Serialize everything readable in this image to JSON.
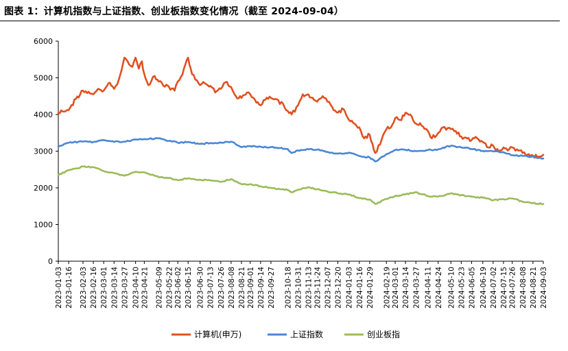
{
  "title": "图表 1：计算机指数与上证指数、创业板指数变化情况（截至 2024-09-04）",
  "chart_data": {
    "type": "line",
    "ylim": [
      0,
      6000
    ],
    "yticks": [
      0,
      1000,
      2000,
      3000,
      4000,
      5000,
      6000
    ],
    "xlim": [
      "2023-01-03",
      "2024-09-03"
    ],
    "xticks": [
      "2023-01-03",
      "2023-01-16",
      "2023-02-03",
      "2023-02-16",
      "2023-03-01",
      "2023-03-14",
      "2023-03-27",
      "2023-04-10",
      "2023-04-21",
      "2023-05-09",
      "2023-05-22",
      "2023-06-02",
      "2023-06-15",
      "2023-06-30",
      "2023-07-13",
      "2023-07-26",
      "2023-08-08",
      "2023-08-21",
      "2023-09-01",
      "2023-09-14",
      "2023-09-27",
      "2023-10-18",
      "2023-10-31",
      "2023-11-13",
      "2023-11-24",
      "2023-12-07",
      "2023-12-20",
      "2024-01-03",
      "2024-01-16",
      "2024-01-29",
      "2024-02-19",
      "2024-03-01",
      "2024-03-14",
      "2024-03-27",
      "2024-04-11",
      "2024-04-24",
      "2024-05-10",
      "2024-05-23",
      "2024-06-05",
      "2024-06-19",
      "2024-07-02",
      "2024-07-15",
      "2024-07-26",
      "2024-08-08",
      "2024-08-21",
      "2024-09-03"
    ],
    "grid": false,
    "legend_position": "bottom",
    "series": [
      {
        "name": "计算机(申万)",
        "color": "#E0501E",
        "points": [
          [
            "2023-01-03",
            4050
          ],
          [
            "2023-01-10",
            4080
          ],
          [
            "2023-01-16",
            4120
          ],
          [
            "2023-01-25",
            4420
          ],
          [
            "2023-02-03",
            4650
          ],
          [
            "2023-02-10",
            4620
          ],
          [
            "2023-02-16",
            4550
          ],
          [
            "2023-02-22",
            4700
          ],
          [
            "2023-03-01",
            4650
          ],
          [
            "2023-03-07",
            4850
          ],
          [
            "2023-03-14",
            4700
          ],
          [
            "2023-03-20",
            4950
          ],
          [
            "2023-03-27",
            5550
          ],
          [
            "2023-03-31",
            5450
          ],
          [
            "2023-04-06",
            5300
          ],
          [
            "2023-04-10",
            5550
          ],
          [
            "2023-04-14",
            5250
          ],
          [
            "2023-04-18",
            5450
          ],
          [
            "2023-04-21",
            5100
          ],
          [
            "2023-04-26",
            4800
          ],
          [
            "2023-05-04",
            5050
          ],
          [
            "2023-05-09",
            4900
          ],
          [
            "2023-05-15",
            4780
          ],
          [
            "2023-05-22",
            4750
          ],
          [
            "2023-05-29",
            4650
          ],
          [
            "2023-06-02",
            4900
          ],
          [
            "2023-06-08",
            5100
          ],
          [
            "2023-06-15",
            5550
          ],
          [
            "2023-06-20",
            5100
          ],
          [
            "2023-06-30",
            4800
          ],
          [
            "2023-07-06",
            4850
          ],
          [
            "2023-07-13",
            4780
          ],
          [
            "2023-07-19",
            4600
          ],
          [
            "2023-07-26",
            4700
          ],
          [
            "2023-08-01",
            4880
          ],
          [
            "2023-08-08",
            4750
          ],
          [
            "2023-08-14",
            4500
          ],
          [
            "2023-08-21",
            4450
          ],
          [
            "2023-08-28",
            4600
          ],
          [
            "2023-09-01",
            4550
          ],
          [
            "2023-09-07",
            4400
          ],
          [
            "2023-09-14",
            4250
          ],
          [
            "2023-09-20",
            4400
          ],
          [
            "2023-09-27",
            4450
          ],
          [
            "2023-10-12",
            4300
          ],
          [
            "2023-10-18",
            4100
          ],
          [
            "2023-10-23",
            4000
          ],
          [
            "2023-10-31",
            4250
          ],
          [
            "2023-11-06",
            4550
          ],
          [
            "2023-11-13",
            4550
          ],
          [
            "2023-11-20",
            4400
          ],
          [
            "2023-11-24",
            4350
          ],
          [
            "2023-12-01",
            4500
          ],
          [
            "2023-12-07",
            4350
          ],
          [
            "2023-12-13",
            4200
          ],
          [
            "2023-12-20",
            4050
          ],
          [
            "2023-12-27",
            4150
          ],
          [
            "2024-01-03",
            3850
          ],
          [
            "2024-01-10",
            3750
          ],
          [
            "2024-01-16",
            3650
          ],
          [
            "2024-01-22",
            3350
          ],
          [
            "2024-01-29",
            3450
          ],
          [
            "2024-02-05",
            2950
          ],
          [
            "2024-02-19",
            3600
          ],
          [
            "2024-02-26",
            3700
          ],
          [
            "2024-03-01",
            3900
          ],
          [
            "2024-03-07",
            3850
          ],
          [
            "2024-03-14",
            4050
          ],
          [
            "2024-03-20",
            4000
          ],
          [
            "2024-03-27",
            3750
          ],
          [
            "2024-04-03",
            3700
          ],
          [
            "2024-04-11",
            3550
          ],
          [
            "2024-04-16",
            3350
          ],
          [
            "2024-04-24",
            3500
          ],
          [
            "2024-04-30",
            3650
          ],
          [
            "2024-05-10",
            3600
          ],
          [
            "2024-05-16",
            3550
          ],
          [
            "2024-05-23",
            3400
          ],
          [
            "2024-05-30",
            3350
          ],
          [
            "2024-06-05",
            3300
          ],
          [
            "2024-06-12",
            3350
          ],
          [
            "2024-06-19",
            3250
          ],
          [
            "2024-06-26",
            3100
          ],
          [
            "2024-07-02",
            3150
          ],
          [
            "2024-07-09",
            3000
          ],
          [
            "2024-07-15",
            3100
          ],
          [
            "2024-07-22",
            3050
          ],
          [
            "2024-07-26",
            3100
          ],
          [
            "2024-08-01",
            3050
          ],
          [
            "2024-08-08",
            2950
          ],
          [
            "2024-08-14",
            2900
          ],
          [
            "2024-08-21",
            2880
          ],
          [
            "2024-08-28",
            2850
          ],
          [
            "2024-09-03",
            2900
          ]
        ]
      },
      {
        "name": "上证指数",
        "color": "#4A86D4",
        "points": [
          [
            "2023-01-03",
            3120
          ],
          [
            "2023-01-16",
            3230
          ],
          [
            "2023-02-03",
            3260
          ],
          [
            "2023-02-16",
            3250
          ],
          [
            "2023-03-01",
            3300
          ],
          [
            "2023-03-14",
            3250
          ],
          [
            "2023-03-27",
            3260
          ],
          [
            "2023-04-10",
            3320
          ],
          [
            "2023-04-21",
            3330
          ],
          [
            "2023-05-09",
            3350
          ],
          [
            "2023-05-22",
            3280
          ],
          [
            "2023-06-02",
            3230
          ],
          [
            "2023-06-15",
            3250
          ],
          [
            "2023-06-30",
            3200
          ],
          [
            "2023-07-13",
            3220
          ],
          [
            "2023-07-26",
            3230
          ],
          [
            "2023-08-08",
            3260
          ],
          [
            "2023-08-21",
            3110
          ],
          [
            "2023-09-01",
            3140
          ],
          [
            "2023-09-14",
            3120
          ],
          [
            "2023-09-27",
            3110
          ],
          [
            "2023-10-18",
            3060
          ],
          [
            "2023-10-23",
            2950
          ],
          [
            "2023-10-31",
            3020
          ],
          [
            "2023-11-13",
            3050
          ],
          [
            "2023-11-24",
            3040
          ],
          [
            "2023-12-07",
            2980
          ],
          [
            "2023-12-20",
            2930
          ],
          [
            "2024-01-03",
            2960
          ],
          [
            "2024-01-16",
            2870
          ],
          [
            "2024-01-29",
            2830
          ],
          [
            "2024-02-05",
            2720
          ],
          [
            "2024-02-19",
            2920
          ],
          [
            "2024-03-01",
            3030
          ],
          [
            "2024-03-14",
            3040
          ],
          [
            "2024-03-27",
            3000
          ],
          [
            "2024-04-11",
            3030
          ],
          [
            "2024-04-24",
            3050
          ],
          [
            "2024-05-10",
            3150
          ],
          [
            "2024-05-23",
            3100
          ],
          [
            "2024-06-05",
            3060
          ],
          [
            "2024-06-19",
            3010
          ],
          [
            "2024-07-02",
            2990
          ],
          [
            "2024-07-15",
            2970
          ],
          [
            "2024-07-26",
            2890
          ],
          [
            "2024-08-08",
            2870
          ],
          [
            "2024-08-21",
            2850
          ],
          [
            "2024-09-03",
            2800
          ]
        ]
      },
      {
        "name": "创业板指",
        "color": "#9BBB59",
        "points": [
          [
            "2023-01-03",
            2350
          ],
          [
            "2023-01-16",
            2480
          ],
          [
            "2023-02-03",
            2580
          ],
          [
            "2023-02-16",
            2560
          ],
          [
            "2023-03-01",
            2460
          ],
          [
            "2023-03-14",
            2400
          ],
          [
            "2023-03-27",
            2330
          ],
          [
            "2023-04-10",
            2440
          ],
          [
            "2023-04-21",
            2420
          ],
          [
            "2023-05-09",
            2290
          ],
          [
            "2023-05-22",
            2270
          ],
          [
            "2023-06-02",
            2210
          ],
          [
            "2023-06-15",
            2260
          ],
          [
            "2023-06-30",
            2220
          ],
          [
            "2023-07-13",
            2200
          ],
          [
            "2023-07-26",
            2160
          ],
          [
            "2023-08-08",
            2240
          ],
          [
            "2023-08-21",
            2100
          ],
          [
            "2023-09-01",
            2100
          ],
          [
            "2023-09-14",
            2040
          ],
          [
            "2023-09-27",
            2000
          ],
          [
            "2023-10-18",
            1940
          ],
          [
            "2023-10-23",
            1880
          ],
          [
            "2023-10-31",
            1950
          ],
          [
            "2023-11-13",
            2020
          ],
          [
            "2023-11-24",
            1960
          ],
          [
            "2023-12-07",
            1900
          ],
          [
            "2023-12-20",
            1850
          ],
          [
            "2024-01-03",
            1820
          ],
          [
            "2024-01-16",
            1720
          ],
          [
            "2024-01-29",
            1680
          ],
          [
            "2024-02-05",
            1560
          ],
          [
            "2024-02-19",
            1700
          ],
          [
            "2024-03-01",
            1780
          ],
          [
            "2024-03-14",
            1820
          ],
          [
            "2024-03-27",
            1880
          ],
          [
            "2024-04-11",
            1780
          ],
          [
            "2024-04-24",
            1760
          ],
          [
            "2024-05-10",
            1850
          ],
          [
            "2024-05-23",
            1800
          ],
          [
            "2024-06-05",
            1760
          ],
          [
            "2024-06-19",
            1730
          ],
          [
            "2024-07-02",
            1660
          ],
          [
            "2024-07-15",
            1690
          ],
          [
            "2024-07-26",
            1710
          ],
          [
            "2024-08-08",
            1620
          ],
          [
            "2024-08-21",
            1580
          ],
          [
            "2024-09-03",
            1560
          ]
        ]
      }
    ]
  }
}
